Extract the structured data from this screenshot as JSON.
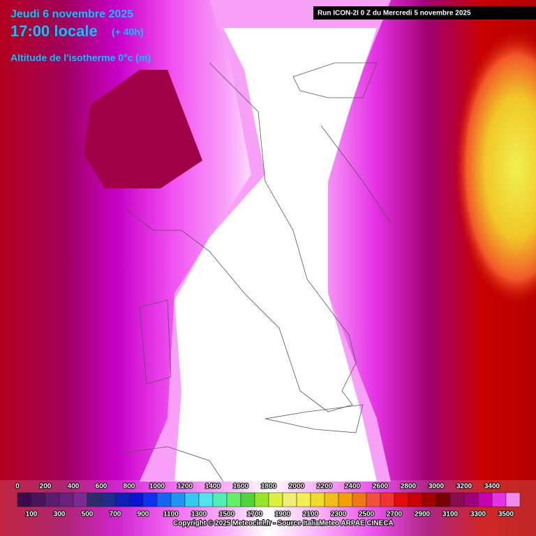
{
  "header": {
    "date": "Jeudi 6 novembre 2025",
    "time": "17:00 locale",
    "lead": "(+ 40h)",
    "parameter": "Altitude de l'isotherme 0°c (m)",
    "run": "Run ICON-2I 0 Z du Mercredi 5 novembre 2025"
  },
  "legend": {
    "labels_top": [
      0,
      200,
      400,
      600,
      800,
      1000,
      1200,
      1400,
      1600,
      1800,
      2000,
      2200,
      2400,
      2600,
      2800,
      3000,
      3200,
      3400
    ],
    "labels_bottom": [
      100,
      300,
      500,
      700,
      900,
      1100,
      1300,
      1500,
      1700,
      1900,
      2100,
      2300,
      2500,
      2700,
      2900,
      3100,
      3300,
      3500
    ],
    "colors": [
      "#3a0a4a",
      "#4a145c",
      "#5a1e6e",
      "#6e2080",
      "#7c2a90",
      "#2c2c6e",
      "#1e2c8c",
      "#1020b4",
      "#0a14d0",
      "#0a32f0",
      "#1464f0",
      "#1e96f0",
      "#32c8f0",
      "#50e6f0",
      "#50f0b4",
      "#64f064",
      "#50d23c",
      "#96e628",
      "#dcf03c",
      "#f0f078",
      "#f0f050",
      "#f0dc28",
      "#f0be14",
      "#f0a000",
      "#f07814",
      "#f0503c",
      "#f03232",
      "#e60a0a",
      "#c80000",
      "#a00000",
      "#780000",
      "#8c0a50",
      "#a00078",
      "#c800b4",
      "#e632e6",
      "#f08cf0"
    ]
  },
  "footer": {
    "copyright": "Copyright © 2025 Meteociel.fr - Source ItaliaMeteo ARPAE CINECA"
  }
}
